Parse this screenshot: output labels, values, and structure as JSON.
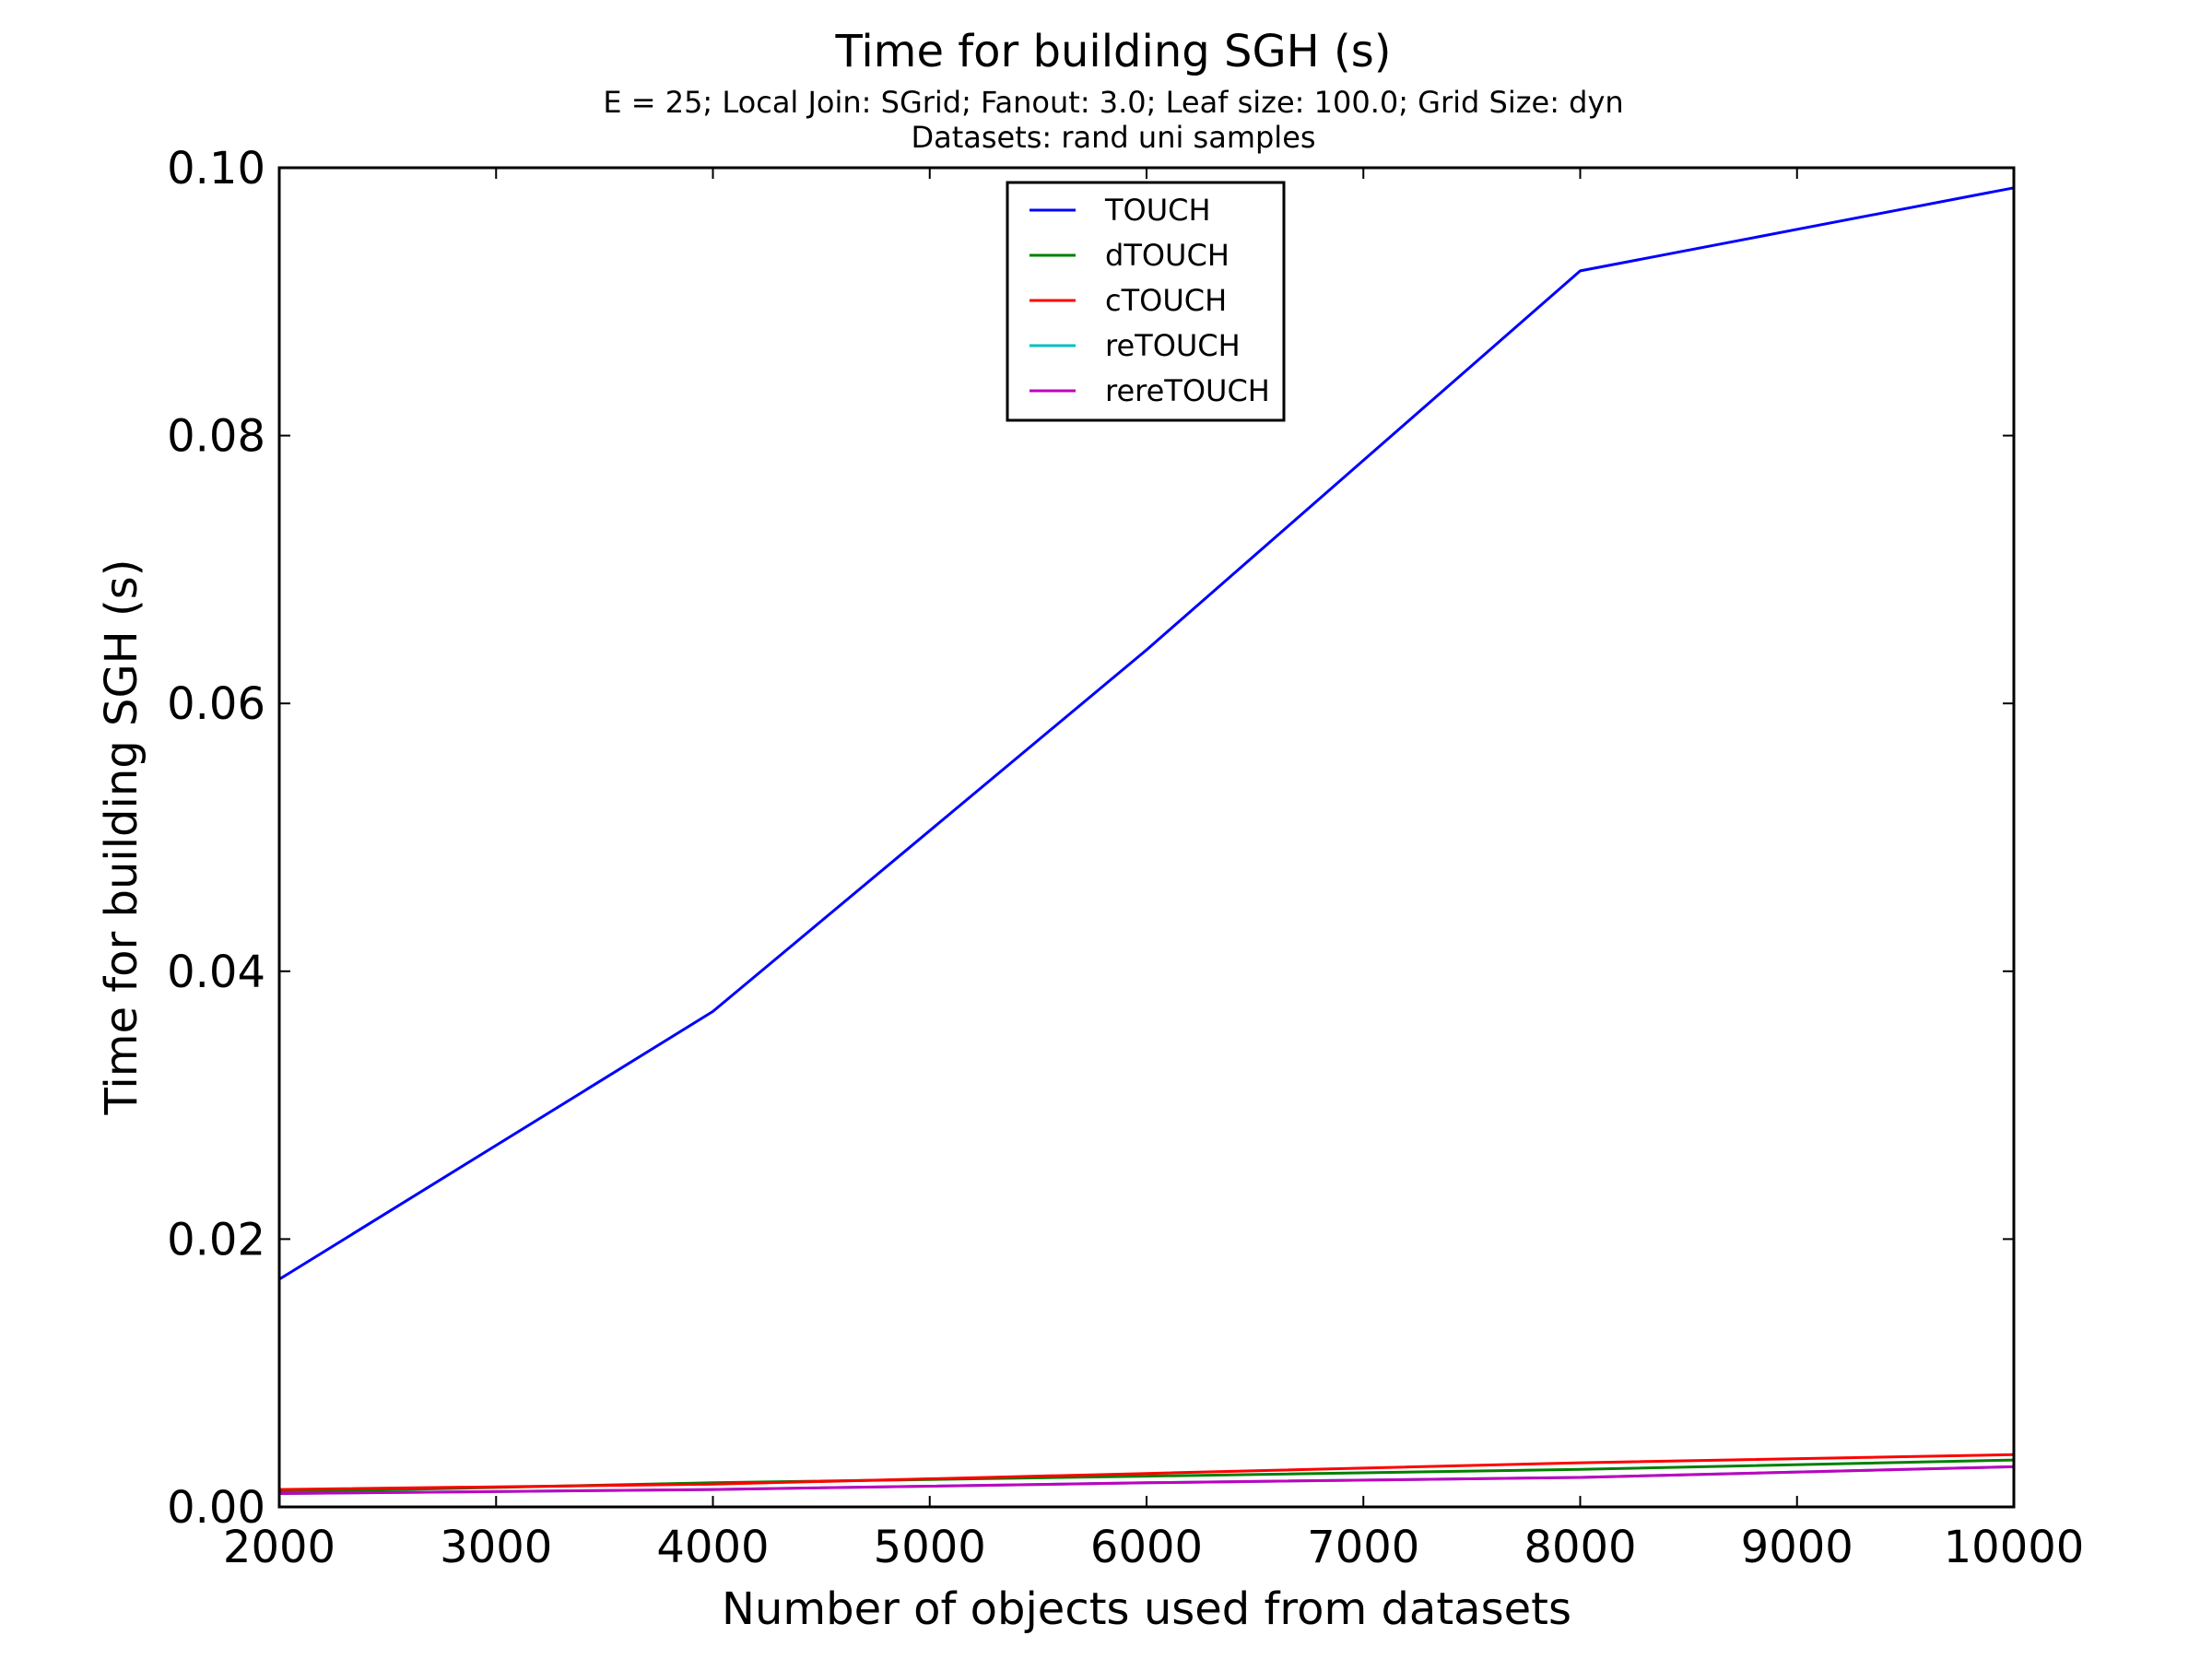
{
  "chart_data": {
    "type": "line",
    "title": "Time for building SGH (s)",
    "subtitle_lines": [
      "E = 25; Local Join: SGrid; Fanout: 3.0; Leaf size: 100.0; Grid Size: dyn",
      "Datasets: rand uni samples"
    ],
    "xlabel": "Number of objects used from datasets",
    "ylabel": "Time for building SGH (s)",
    "xlim": [
      2000,
      10000
    ],
    "ylim": [
      0,
      0.1
    ],
    "x_ticks": [
      2000,
      3000,
      4000,
      5000,
      6000,
      7000,
      8000,
      9000,
      10000
    ],
    "x_tick_labels": [
      "2000",
      "3000",
      "4000",
      "5000",
      "6000",
      "7000",
      "8000",
      "9000",
      "10000"
    ],
    "y_ticks": [
      0,
      0.02,
      0.04,
      0.06,
      0.08,
      0.1
    ],
    "y_tick_labels": [
      "0.00",
      "0.02",
      "0.04",
      "0.06",
      "0.08",
      "0.10"
    ],
    "grid": false,
    "legend_position": "top-center",
    "x": [
      2000,
      4000,
      6000,
      8000,
      10000
    ],
    "series": [
      {
        "name": "TOUCH",
        "color": "#0000ff",
        "values": [
          0.017,
          0.037,
          0.064,
          0.0923,
          0.0985
        ]
      },
      {
        "name": "dTOUCH",
        "color": "#008000",
        "values": [
          0.0011,
          0.0018,
          0.0023,
          0.0028,
          0.0035
        ]
      },
      {
        "name": "cTOUCH",
        "color": "#ff0000",
        "values": [
          0.0013,
          0.0017,
          0.0025,
          0.0033,
          0.0039
        ]
      },
      {
        "name": "reTOUCH",
        "color": "#00bfbf",
        "values": [
          0.001,
          0.0013,
          0.0018,
          0.0022,
          0.003
        ]
      },
      {
        "name": "rereTOUCH",
        "color": "#bf00bf",
        "values": [
          0.001,
          0.0013,
          0.0018,
          0.0022,
          0.003
        ]
      }
    ]
  }
}
